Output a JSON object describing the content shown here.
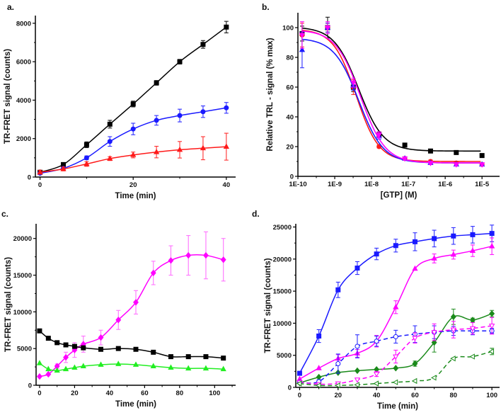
{
  "chart_data": [
    {
      "panel": "a.",
      "type": "line",
      "xlabel": "Time (min)",
      "ylabel": "TR-FRET signal (counts)",
      "xlim": [
        -1,
        42
      ],
      "ylim": [
        0,
        8400
      ],
      "xticks": [
        0,
        20,
        40
      ],
      "yticks": [
        0,
        2000,
        4000,
        6000,
        8000
      ],
      "x": [
        0,
        5,
        10,
        15,
        20,
        25,
        30,
        35,
        40
      ],
      "series": [
        {
          "color": "#000000",
          "marker": "square",
          "filled": true,
          "dashed": false,
          "values": [
            250,
            650,
            1680,
            2750,
            3800,
            4900,
            6000,
            6900,
            7800
          ],
          "errors": [
            100,
            100,
            150,
            200,
            150,
            120,
            120,
            200,
            300
          ]
        },
        {
          "color": "#1a1aff",
          "marker": "circle",
          "filled": true,
          "dashed": false,
          "values": [
            200,
            450,
            1000,
            1850,
            2500,
            2950,
            3200,
            3400,
            3600
          ],
          "errors": [
            50,
            60,
            100,
            250,
            300,
            250,
            330,
            300,
            280
          ]
        },
        {
          "color": "#ff1a1a",
          "marker": "triangle-up",
          "filled": true,
          "dashed": false,
          "values": [
            250,
            420,
            680,
            960,
            1150,
            1300,
            1420,
            1500,
            1580
          ],
          "errors": [
            100,
            100,
            120,
            100,
            150,
            300,
            430,
            600,
            700
          ]
        }
      ]
    },
    {
      "panel": "b.",
      "type": "scatter",
      "xscale": "log",
      "xlabel": "[GTP] (M)",
      "ylabel": "Relative TRL - signal (% max)",
      "xlim": [
        1e-10,
        3e-05
      ],
      "ylim": [
        0,
        110
      ],
      "xticks": [
        "1E-10",
        "1E-9",
        "1E-8",
        "1E-7",
        "1E-6",
        "1E-5"
      ],
      "yticks": [
        0,
        20,
        40,
        60,
        80,
        100
      ],
      "x": [
        1.3e-10,
        6.4e-10,
        3.2e-09,
        1.6e-08,
        8e-08,
        4e-07,
        2e-06,
        1e-05
      ],
      "series": [
        {
          "color": "#000000",
          "marker": "square",
          "filled": true,
          "values": [
            96,
            100,
            60,
            28,
            21,
            17,
            16,
            14
          ],
          "errors": [
            5,
            7,
            3,
            2,
            0,
            1,
            0,
            0
          ],
          "fit": {
            "top": 100.5,
            "bottom": 17,
            "log_ec50": -8.35,
            "hill": 1.3
          }
        },
        {
          "color": "#ff1a1a",
          "marker": "circle",
          "filled": true,
          "values": [
            95,
            100,
            60,
            20,
            12,
            10,
            9,
            8
          ],
          "errors": [
            8,
            3,
            5,
            1,
            1,
            1,
            1,
            1
          ],
          "fit": {
            "top": 99,
            "bottom": 10,
            "log_ec50": -8.42,
            "hill": 1.4
          }
        },
        {
          "color": "#1a1aff",
          "marker": "triangle-up",
          "filled": true,
          "values": [
            85,
            100,
            61,
            27,
            12,
            9,
            8,
            8
          ],
          "errors": [
            12,
            3,
            3,
            2,
            1,
            1,
            1,
            1
          ],
          "fit": {
            "top": 93,
            "bottom": 9,
            "log_ec50": -8.35,
            "hill": 1.3
          }
        },
        {
          "color": "#ff00ff",
          "marker": "triangle-down",
          "filled": true,
          "values": [
            95,
            100,
            63,
            28,
            12,
            9,
            8,
            8
          ],
          "errors": [
            9,
            4,
            3,
            2,
            1,
            1,
            1,
            1
          ],
          "fit": {
            "top": 98.5,
            "bottom": 9,
            "log_ec50": -8.3,
            "hill": 1.3
          }
        }
      ]
    },
    {
      "panel": "c.",
      "type": "line",
      "xlabel": "Time (min)",
      "ylabel": "TR-FRET signal (counts)",
      "xlim": [
        -2,
        112
      ],
      "ylim": [
        0,
        22000
      ],
      "xticks": [
        0,
        20,
        40,
        60,
        80,
        100
      ],
      "yticks": [
        0,
        5000,
        10000,
        15000,
        20000
      ],
      "x": [
        0,
        5,
        10,
        15,
        20,
        25,
        35,
        45,
        55,
        65,
        75,
        85,
        95,
        105
      ],
      "series": [
        {
          "color": "#ff00ff",
          "marker": "diamond",
          "filled": true,
          "dashed": false,
          "values": [
            1200,
            1500,
            2600,
            3800,
            4800,
            5600,
            6500,
            8900,
            11300,
            15300,
            17000,
            17700,
            17700,
            17100
          ],
          "errors": [
            0,
            0,
            300,
            700,
            1000,
            1100,
            1000,
            1300,
            1600,
            1600,
            2000,
            2700,
            3200,
            2900
          ]
        },
        {
          "color": "#000000",
          "marker": "square",
          "filled": true,
          "dashed": false,
          "values": [
            7400,
            6400,
            5800,
            5500,
            5300,
            5100,
            4900,
            5000,
            4900,
            4500,
            3900,
            3900,
            3900,
            3700
          ],
          "errors": []
        },
        {
          "color": "#22ee22",
          "marker": "triangle-up",
          "filled": true,
          "dashed": false,
          "values": [
            3000,
            2200,
            2000,
            2200,
            2400,
            2600,
            2800,
            2900,
            2800,
            2600,
            2400,
            2300,
            2300,
            2200
          ],
          "errors": []
        }
      ]
    },
    {
      "panel": "d.",
      "type": "line",
      "xlabel": "Time (min)",
      "ylabel": "TR-FRET signal (counts)",
      "xlim": [
        -2,
        104
      ],
      "ylim": [
        0,
        25500
      ],
      "xticks": [
        0,
        20,
        40,
        60,
        80,
        100
      ],
      "yticks": [
        0,
        5000,
        10000,
        15000,
        20000,
        25000
      ],
      "x": [
        0,
        10,
        20,
        30,
        40,
        50,
        60,
        70,
        80,
        90,
        100
      ],
      "series": [
        {
          "color": "#1a1aff",
          "marker": "square",
          "filled": true,
          "dashed": false,
          "values": [
            2200,
            8000,
            15200,
            18600,
            20800,
            22100,
            22700,
            23200,
            23600,
            23800,
            24000
          ],
          "errors": [
            0,
            1000,
            1200,
            1000,
            900,
            1000,
            1400,
            1300,
            1300,
            1300,
            1300
          ]
        },
        {
          "color": "#ff00ff",
          "marker": "triangle-up",
          "filled": true,
          "dashed": false,
          "values": [
            1300,
            3000,
            4500,
            5300,
            7200,
            12500,
            18500,
            20100,
            20700,
            21300,
            22000
          ],
          "errors": [
            0,
            0,
            600,
            600,
            900,
            1000,
            0,
            700,
            700,
            900,
            1300
          ]
        },
        {
          "color": "#1a8a1a",
          "marker": "diamond",
          "filled": true,
          "dashed": false,
          "values": [
            700,
            1600,
            2300,
            2600,
            2800,
            3000,
            3700,
            7000,
            11000,
            10500,
            11500
          ],
          "errors": [
            0,
            0,
            0,
            0,
            0,
            0,
            400,
            1500,
            1200,
            300,
            500
          ]
        },
        {
          "color": "#1a1aff",
          "marker": "circle",
          "filled": false,
          "dashed": true,
          "values": [
            800,
            900,
            3700,
            6400,
            7200,
            7900,
            8300,
            8600,
            8800,
            8800,
            8800
          ],
          "errors": [
            0,
            300,
            1500,
            1800,
            800,
            1000,
            1300,
            1000,
            700,
            600,
            400
          ]
        },
        {
          "color": "#ff00ff",
          "marker": "triangle-down",
          "filled": false,
          "dashed": true,
          "values": [
            800,
            500,
            600,
            1200,
            2100,
            4800,
            7700,
            8600,
            9000,
            9200,
            9600
          ],
          "errors": [
            0,
            0,
            0,
            0,
            400,
            1000,
            800,
            1300,
            1300,
            900,
            1300
          ]
        },
        {
          "color": "#1a8a1a",
          "marker": "triangle-left",
          "filled": false,
          "dashed": true,
          "values": [
            600,
            300,
            300,
            400,
            600,
            800,
            1000,
            1500,
            4500,
            4800,
            5600
          ],
          "errors": [
            0,
            0,
            0,
            0,
            0,
            0,
            0,
            0,
            0,
            0,
            500
          ]
        }
      ]
    }
  ]
}
